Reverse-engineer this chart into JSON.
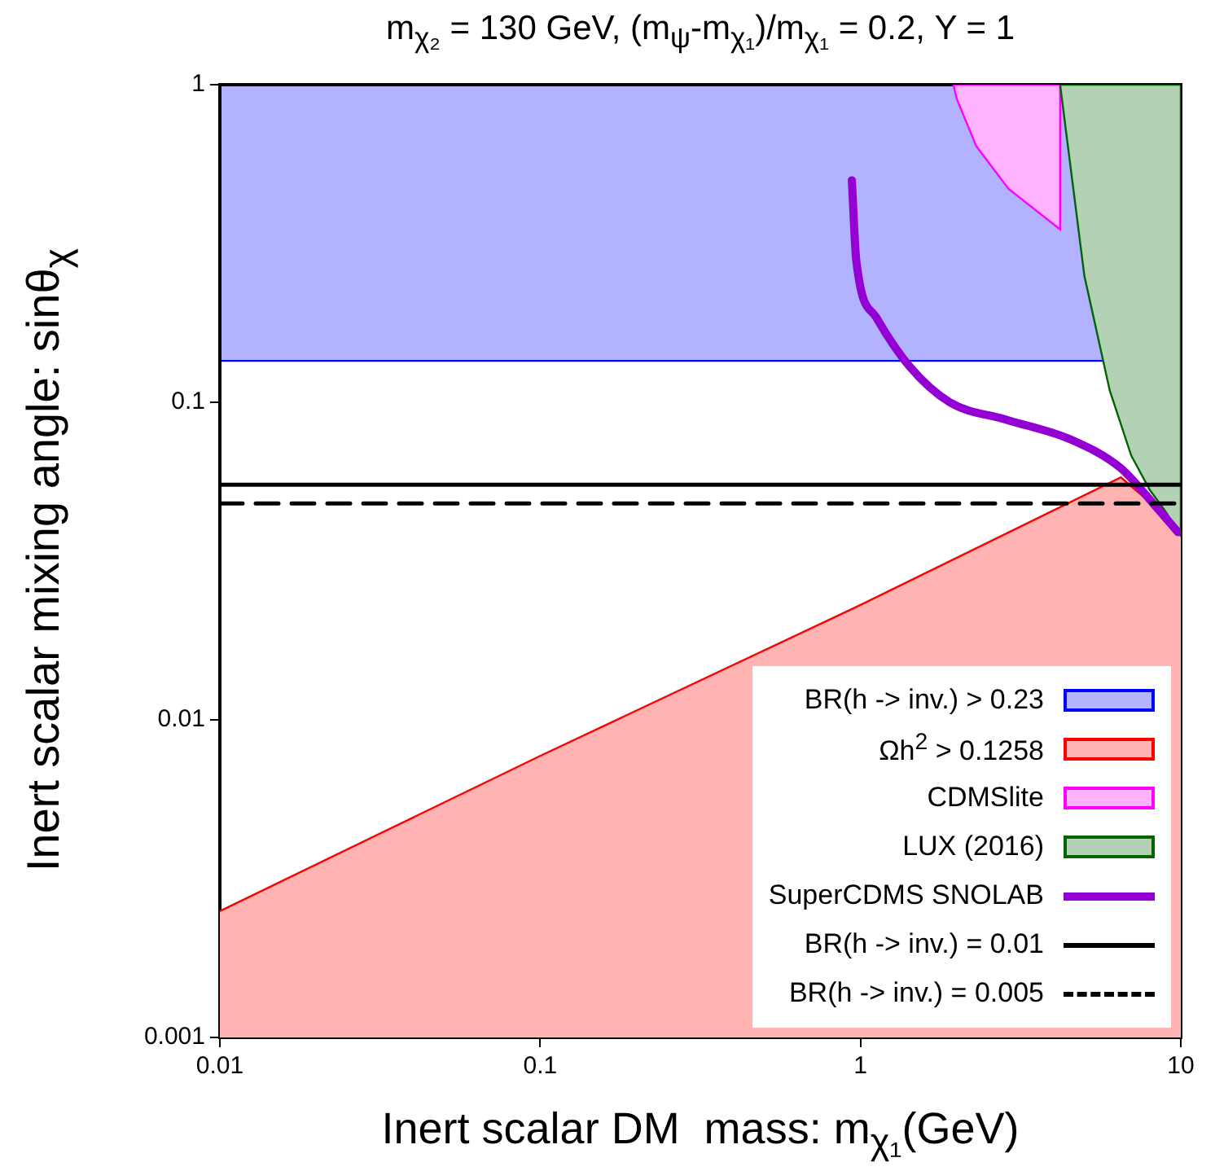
{
  "chart_data": {
    "type": "area",
    "title": "m$_{χ₂}$ = 130 GeV, (m$_{ψ}$-m$_{χ₁}$)/m$_{χ₁}$ = 0.2, Y = 1",
    "xlabel": "Inert scalar DM  mass: m$_{χ₁}$(GeV)",
    "ylabel": "Inert scalar mixing angle: sinθ$_{χ}$",
    "log": "xy",
    "xlim": [
      0.01,
      10
    ],
    "xticks": [
      0.01,
      0.1,
      1,
      10
    ],
    "ylim": [
      0.001,
      1
    ],
    "yticks": [
      0.001,
      0.01,
      0.1,
      1
    ],
    "grid": false,
    "legend": "bottom right",
    "bands": [
      {
        "axis": "y",
        "from": 0.135,
        "to": 1,
        "label": "BR(h -> inv.) > 0.23",
        "color": "#0000ff"
      }
    ],
    "series": [
      {
        "name": "Ωh$^{2}$ > 0.1258",
        "color": "#ff0000",
        "x": [
          0.01,
          0.1,
          1,
          6.5,
          10
        ],
        "values": [
          0.0025,
          0.0077,
          0.023,
          0.058,
          0.04
        ]
      },
      {
        "name": "CDMSlite",
        "color": "#ff00ff",
        "x": [
          1.95,
          2.0,
          2.3,
          2.9,
          4.2,
          4.2,
          1.95
        ],
        "values": [
          1,
          0.9,
          0.64,
          0.47,
          0.35,
          1,
          1
        ]
      },
      {
        "name": "LUX (2016)",
        "color": "#006400",
        "x": [
          4.2,
          5,
          6,
          7,
          8,
          9,
          10,
          10,
          4.2
        ],
        "values": [
          1,
          0.25,
          0.109,
          0.068,
          0.053,
          0.045,
          0.038,
          1,
          1
        ]
      },
      {
        "name": "SuperCDMS SNOLAB",
        "type": "line",
        "color": "#9400d3",
        "x": [
          0.94,
          0.97,
          1.12,
          1.42,
          1.9,
          2.87,
          4.58,
          6.5,
          8.2,
          9.8
        ],
        "values": [
          0.5,
          0.28,
          0.185,
          0.13,
          0.1,
          0.088,
          0.076,
          0.062,
          0.048,
          0.039
        ]
      },
      {
        "name": "BR(h -> inv.) = 0.01",
        "type": "line",
        "color": "#000000",
        "line_style": "solid",
        "x": [
          0.01,
          10
        ],
        "values": [
          0.055,
          0.055
        ]
      },
      {
        "name": "BR(h -> inv.) = 0.005",
        "type": "line",
        "color": "#000000",
        "line_style": "dashed",
        "x": [
          0.01,
          10
        ],
        "values": [
          0.048,
          0.048
        ]
      }
    ]
  }
}
